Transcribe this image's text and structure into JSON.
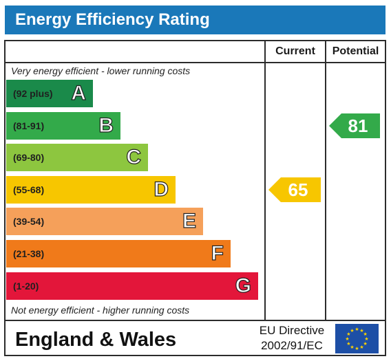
{
  "header": {
    "title": "Energy Efficiency Rating"
  },
  "columns": {
    "current_label": "Current",
    "potential_label": "Potential"
  },
  "notes": {
    "top": "Very energy efficient - lower running costs",
    "bottom": "Not energy efficient - higher running costs"
  },
  "chart_data": {
    "type": "bar",
    "title": "Energy Efficiency Rating",
    "bands": [
      {
        "range": "(92 plus)",
        "letter": "A",
        "min": 92,
        "max": 100,
        "color": "#1a8a4a"
      },
      {
        "range": "(81-91)",
        "letter": "B",
        "min": 81,
        "max": 91,
        "color": "#33aa4a"
      },
      {
        "range": "(69-80)",
        "letter": "C",
        "min": 69,
        "max": 80,
        "color": "#8dc63f"
      },
      {
        "range": "(55-68)",
        "letter": "D",
        "min": 55,
        "max": 68,
        "color": "#f7c600"
      },
      {
        "range": "(39-54)",
        "letter": "E",
        "min": 39,
        "max": 54,
        "color": "#f5a05a"
      },
      {
        "range": "(21-38)",
        "letter": "F",
        "min": 21,
        "max": 38,
        "color": "#f07a1a"
      },
      {
        "range": "(1-20)",
        "letter": "G",
        "min": 1,
        "max": 20,
        "color": "#e3163a"
      }
    ],
    "current": {
      "value": 65,
      "band": "D",
      "color": "#f7c600"
    },
    "potential": {
      "value": 81,
      "band": "B",
      "color": "#33aa4a"
    }
  },
  "footer": {
    "region": "England & Wales",
    "directive_line1": "EU Directive",
    "directive_line2": "2002/91/EC"
  }
}
